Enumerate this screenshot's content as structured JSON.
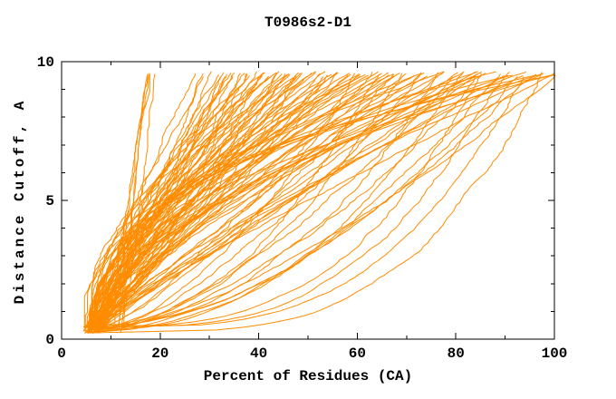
{
  "chart_data": {
    "type": "line",
    "title": "T0986s2-D1",
    "xlabel": "Percent of Residues (CA)",
    "ylabel": "Distance Cutoff, A",
    "xlim": [
      0,
      100
    ],
    "ylim": [
      0,
      10
    ],
    "x_ticks": [
      0,
      20,
      40,
      60,
      80,
      100
    ],
    "x_minor_tick_step": 10,
    "y_ticks": [
      0,
      5,
      10
    ],
    "y_minor_tick_step": 1,
    "grid": false,
    "legend": "none",
    "background_color": "#ffffff",
    "axis_color": "#000000",
    "curve_color": "#ff8c00",
    "description": "Cumulative percent of CA residues under a distance cutoff; one jagged orange curve per predicted model. All curves rise from a converging wedge near (5%, 0.3 A) up to top ends between 17% and 100% at about 9.5 A.",
    "curve_model": "x(t) = x0 + (x_top - x0) * t^p plus monotone jitter; y(t) = y_start + t*(y_end - y_start)",
    "curve_param_format": [
      "x0_percent",
      "x_top_percent",
      "shape_p",
      "jitter_amp_percent"
    ],
    "points_per_curve": 90,
    "y_start_range": [
      0.2,
      0.45
    ],
    "y_end_range": [
      9.45,
      9.65
    ],
    "noise_seed": 42,
    "curves": [
      [
        11.5,
        17.2,
        1.1,
        0.5
      ],
      [
        12,
        17.8,
        1.05,
        0.5
      ],
      [
        11,
        18.4,
        1.15,
        0.6
      ],
      [
        12.5,
        19,
        1.1,
        0.5
      ],
      [
        10.5,
        18,
        1.2,
        0.6
      ],
      [
        6,
        26.5,
        1.2,
        0.8
      ],
      [
        7,
        28,
        1,
        0.9
      ],
      [
        5.5,
        29,
        1.3,
        0.8
      ],
      [
        8,
        30,
        0.9,
        1
      ],
      [
        6.5,
        31,
        1.1,
        0.9
      ],
      [
        7.5,
        32,
        1.4,
        0.8
      ],
      [
        5,
        33,
        1,
        1
      ],
      [
        6,
        33.5,
        0.8,
        0.9
      ],
      [
        8.5,
        34,
        1.2,
        0.8
      ],
      [
        7,
        34.5,
        1.5,
        0.9
      ],
      [
        5.5,
        35,
        1.1,
        1
      ],
      [
        6.5,
        35.5,
        0.95,
        0.9
      ],
      [
        4.5,
        36,
        0.7,
        1
      ],
      [
        5,
        37,
        1,
        1.1
      ],
      [
        5.5,
        37.5,
        1.3,
        0.9
      ],
      [
        6,
        38,
        1.6,
        1
      ],
      [
        6.5,
        38.5,
        0.85,
        1.1
      ],
      [
        7,
        39,
        1.15,
        1
      ],
      [
        7.5,
        40,
        1.45,
        0.9
      ],
      [
        8,
        40.5,
        1.8,
        1
      ],
      [
        4.8,
        41,
        0.75,
        1.1
      ],
      [
        5.3,
        41.5,
        1.05,
        1
      ],
      [
        5.8,
        42,
        1.35,
        0.9
      ],
      [
        6.3,
        42.5,
        1.65,
        1
      ],
      [
        6.8,
        43,
        0.9,
        1.1
      ],
      [
        7.3,
        43.5,
        1.2,
        1
      ],
      [
        7.8,
        44,
        1.5,
        0.9
      ],
      [
        4.6,
        44.5,
        1.85,
        1
      ],
      [
        5.1,
        45,
        0.8,
        1.1
      ],
      [
        5.6,
        45.5,
        1.1,
        1
      ],
      [
        6.1,
        46,
        1.4,
        0.9
      ],
      [
        6.6,
        46.5,
        1.7,
        1
      ],
      [
        7.1,
        47,
        0.95,
        1.1
      ],
      [
        7.6,
        47.5,
        1.25,
        1
      ],
      [
        8.1,
        48,
        1.55,
        0.9
      ],
      [
        4.7,
        48.5,
        1.9,
        1
      ],
      [
        5.2,
        49,
        0.85,
        1.1
      ],
      [
        5.7,
        49.5,
        1.15,
        1
      ],
      [
        6.2,
        50,
        1.45,
        0.9
      ],
      [
        6.7,
        51,
        1.75,
        1
      ],
      [
        7.2,
        51.5,
        1,
        1.1
      ],
      [
        7.7,
        52,
        1.3,
        1
      ],
      [
        4.9,
        53,
        1.6,
        0.9
      ],
      [
        5.4,
        53.5,
        0.9,
        1
      ],
      [
        5.9,
        54,
        1.2,
        1.1
      ],
      [
        6.4,
        55,
        1.5,
        1
      ],
      [
        6.9,
        55.5,
        1.8,
        0.9
      ],
      [
        7.4,
        56,
        1.05,
        1
      ],
      [
        7.9,
        57,
        1.35,
        1.1
      ],
      [
        5,
        57.5,
        1.65,
        1
      ],
      [
        5.5,
        58,
        0.95,
        0.9
      ],
      [
        6,
        59,
        1.25,
        1
      ],
      [
        6.5,
        59.5,
        1.55,
        1.1
      ],
      [
        7,
        60,
        1.85,
        1
      ],
      [
        4.5,
        60.5,
        0.55,
        1
      ],
      [
        5,
        61,
        1.1,
        1.1
      ],
      [
        5.5,
        62,
        1.5,
        1
      ],
      [
        6,
        62.5,
        2,
        0.9
      ],
      [
        6.5,
        63,
        0.8,
        1.1
      ],
      [
        7,
        64,
        1.2,
        1
      ],
      [
        7.5,
        64.5,
        1.6,
        0.9
      ],
      [
        4.6,
        65,
        0.5,
        1
      ],
      [
        5.1,
        66,
        1.05,
        1.1
      ],
      [
        5.6,
        66.5,
        1.45,
        1
      ],
      [
        6.1,
        67,
        1.9,
        0.9
      ],
      [
        6.6,
        68,
        0.75,
        1.1
      ],
      [
        7.1,
        69,
        1.15,
        1
      ],
      [
        7.6,
        69.5,
        1.55,
        0.9
      ],
      [
        4.7,
        70,
        0.48,
        1
      ],
      [
        5.2,
        71,
        1,
        1.1
      ],
      [
        5.7,
        72,
        1.4,
        1
      ],
      [
        6.2,
        72.5,
        2.1,
        0.9
      ],
      [
        6.7,
        73,
        0.7,
        1.1
      ],
      [
        7.2,
        74,
        1.1,
        1
      ],
      [
        7.7,
        75,
        1.5,
        0.9
      ],
      [
        4.8,
        76,
        0.45,
        1
      ],
      [
        5.3,
        77,
        0.95,
        1.1
      ],
      [
        5.8,
        78,
        1.35,
        1
      ],
      [
        6.3,
        78.5,
        2.2,
        0.9
      ],
      [
        6.8,
        79,
        0.65,
        1.1
      ],
      [
        7.3,
        80,
        1.05,
        1
      ],
      [
        7.8,
        81,
        1.45,
        0.9
      ],
      [
        4.9,
        82,
        0.42,
        1
      ],
      [
        5.4,
        83,
        0.9,
        1.1
      ],
      [
        5.9,
        83.5,
        1.3,
        1
      ],
      [
        6.4,
        84,
        1.95,
        0.9
      ],
      [
        6.9,
        84.5,
        0.6,
        1.1
      ],
      [
        7.4,
        85,
        1,
        1
      ],
      [
        7.9,
        85.5,
        1.4,
        0.9
      ],
      [
        5,
        86,
        0.35,
        0.9
      ],
      [
        5.5,
        87,
        1.6,
        1
      ],
      [
        6,
        88,
        2.3,
        0.9
      ],
      [
        6.5,
        88.5,
        0.5,
        1
      ],
      [
        7,
        89,
        1.1,
        1
      ],
      [
        5.2,
        90,
        0.32,
        0.9
      ],
      [
        5.7,
        91,
        1.7,
        1
      ],
      [
        6.2,
        92,
        2.5,
        0.9
      ],
      [
        6.7,
        92.5,
        0.55,
        1
      ],
      [
        7.2,
        93,
        1.2,
        1
      ],
      [
        5.1,
        94,
        0.3,
        0.9
      ],
      [
        5.6,
        95,
        1.8,
        1
      ],
      [
        6.1,
        95.5,
        2.6,
        0.9
      ],
      [
        6.6,
        96,
        0.6,
        1
      ],
      [
        7.1,
        97,
        1.3,
        1
      ],
      [
        5.3,
        97.5,
        0.28,
        0.9
      ],
      [
        5.8,
        98,
        1.9,
        1
      ],
      [
        6.3,
        99,
        2.8,
        0.9
      ],
      [
        6.8,
        99.5,
        0.65,
        1
      ],
      [
        7.3,
        100,
        1.15,
        1
      ],
      [
        5.9,
        100,
        2.2,
        0.9
      ]
    ]
  }
}
